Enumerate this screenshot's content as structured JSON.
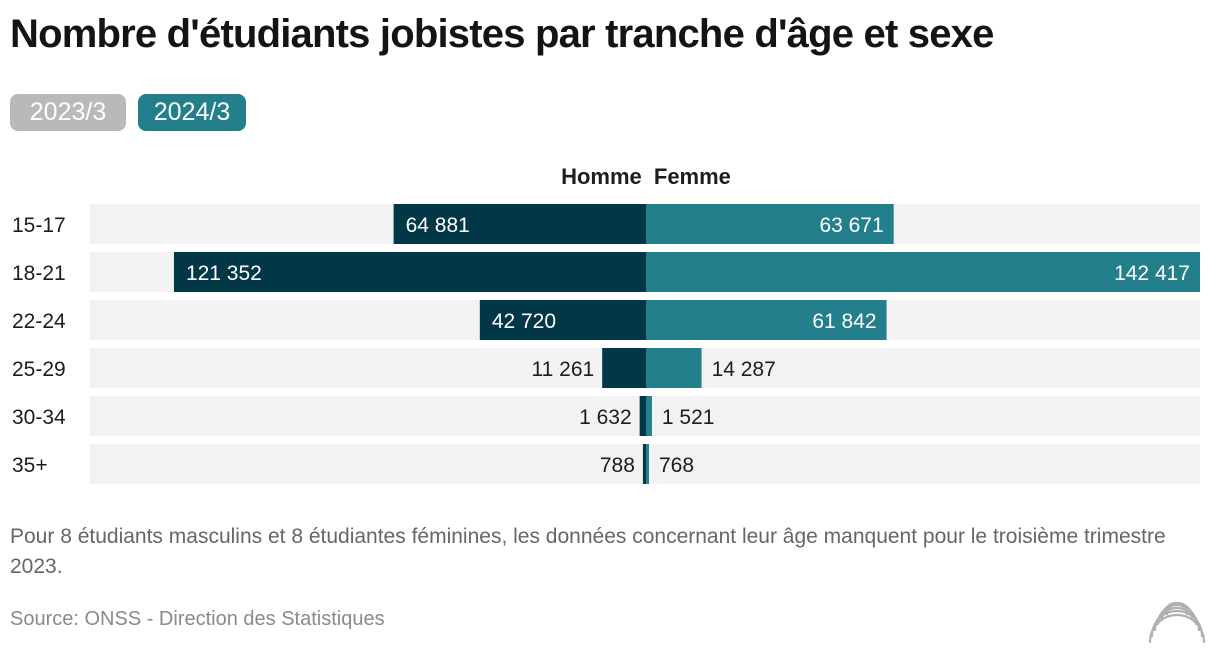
{
  "title": "Nombre d'étudiants jobistes par tranche d'âge et sexe",
  "tabs": [
    {
      "label": "2023/3",
      "active": false
    },
    {
      "label": "2024/3",
      "active": true
    }
  ],
  "colors": {
    "homme": "#023747",
    "femme": "#237f8b",
    "track": "#f2f2f2",
    "tab_inactive": "#b9b9bb",
    "tab_active": "#237f8b"
  },
  "chart_data": {
    "type": "bar",
    "orientation": "horizontal-diverging",
    "categories": [
      "15-17",
      "18-21",
      "22-24",
      "25-29",
      "30-34",
      "35+"
    ],
    "series": [
      {
        "name": "Homme",
        "values": [
          64881,
          121352,
          42720,
          11261,
          1632,
          788
        ],
        "labels": [
          "64 881",
          "121 352",
          "42 720",
          "11 261",
          "1 632",
          "788"
        ]
      },
      {
        "name": "Femme",
        "values": [
          63671,
          142417,
          61842,
          14287,
          1521,
          768
        ],
        "labels": [
          "63 671",
          "142 417",
          "61 842",
          "14 287",
          "1 521",
          "768"
        ]
      }
    ],
    "xlim": [
      -142417,
      142417
    ],
    "grid": false
  },
  "note": "Pour 8 étudiants masculins et 8 étudiantes féminines, les données concernant leur âge manquent pour le troisième trimestre 2023.",
  "source": "Source: ONSS - Direction des Statistiques",
  "logo_icon": "concentric-arcs-logo-icon"
}
